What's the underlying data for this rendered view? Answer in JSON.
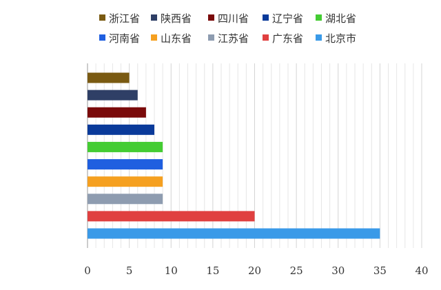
{
  "chart_data": {
    "type": "bar",
    "orientation": "horizontal",
    "title": "",
    "xlabel": "",
    "ylabel": "",
    "xlim": [
      0,
      40
    ],
    "x_ticks": [
      0,
      5,
      10,
      15,
      20,
      25,
      30,
      35,
      40
    ],
    "grid": "vertical",
    "legend_position": "top",
    "categories": [
      "浙江省",
      "陕西省",
      "四川省",
      "辽宁省",
      "湖北省",
      "河南省",
      "山东省",
      "江苏省",
      "广东省",
      "北京市"
    ],
    "values": [
      5,
      6,
      7,
      8,
      9,
      9,
      9,
      9,
      20,
      35
    ],
    "colors": [
      "#7a5a12",
      "#2f3f66",
      "#7a0a0a",
      "#0a3a9a",
      "#44cc33",
      "#1f5fe0",
      "#f5a020",
      "#8e9cb0",
      "#e04040",
      "#3a9ae8"
    ]
  }
}
